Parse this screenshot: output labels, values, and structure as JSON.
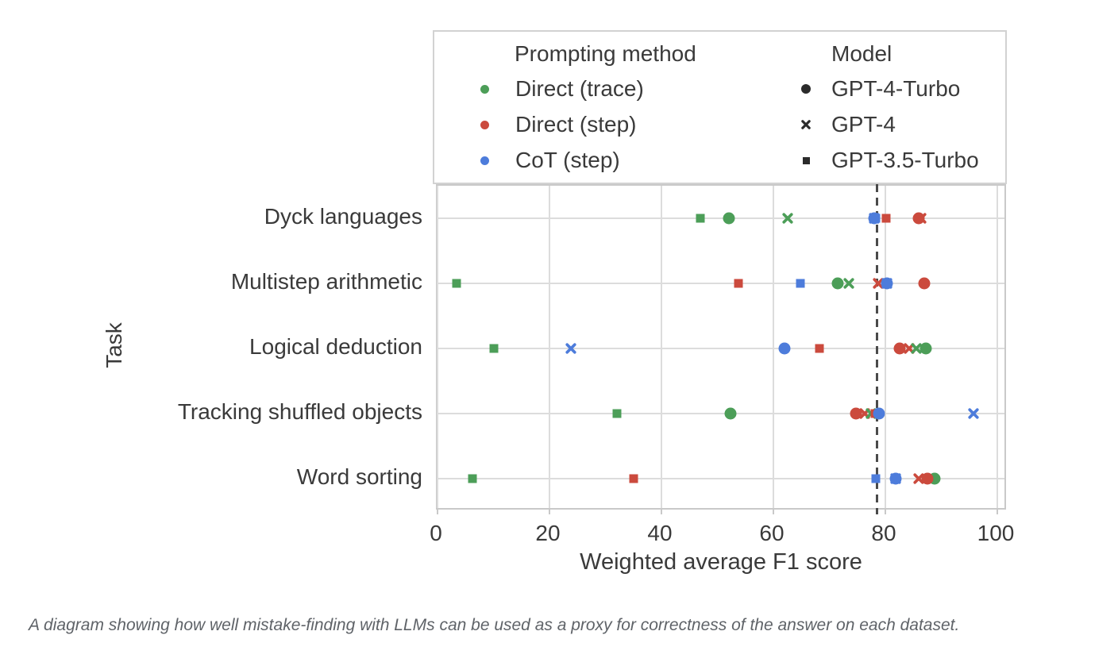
{
  "figure": {
    "caption": "A diagram showing how well mistake-finding with LLMs can be used as a proxy for correctness of the answer on each dataset."
  },
  "chart_data": {
    "type": "scatter",
    "title": "",
    "xlabel": "Weighted average F1 score",
    "ylabel": "Task",
    "xlim": [
      0,
      101.8
    ],
    "xticks": [
      0,
      20,
      40,
      60,
      80,
      100
    ],
    "grid": true,
    "legend_position": "top",
    "categories": [
      "Dyck languages",
      "Multistep arithmetic",
      "Logical deduction",
      "Tracking shuffled objects",
      "Word sorting"
    ],
    "reference_line": {
      "x": 78.5,
      "style": "dashed",
      "color": "#4a4a4a"
    },
    "colors": {
      "Direct (trace)": "#4C9E58",
      "Direct (step)": "#CB4A3D",
      "CoT (step)": "#4D7CDB",
      "model_marker": "#2b2b2b"
    },
    "legend": {
      "prompting": {
        "title": "Prompting method",
        "items": [
          {
            "label": "Direct (trace)",
            "color": "#4C9E58"
          },
          {
            "label": "Direct (step)",
            "color": "#CB4A3D"
          },
          {
            "label": "CoT (step)",
            "color": "#4D7CDB"
          }
        ]
      },
      "model": {
        "title": "Model",
        "items": [
          {
            "label": "GPT-4-Turbo",
            "marker": "circle"
          },
          {
            "label": "GPT-4",
            "marker": "x"
          },
          {
            "label": "GPT-3.5-Turbo",
            "marker": "square"
          }
        ]
      }
    },
    "points": [
      {
        "task": "Dyck languages",
        "method": "Direct (trace)",
        "model": "GPT-3.5-Turbo",
        "marker": "square",
        "x": 47.0
      },
      {
        "task": "Dyck languages",
        "method": "Direct (trace)",
        "model": "GPT-4-Turbo",
        "marker": "circle",
        "x": 52.0
      },
      {
        "task": "Dyck languages",
        "method": "Direct (trace)",
        "model": "GPT-4",
        "marker": "x",
        "x": 62.5
      },
      {
        "task": "Dyck languages",
        "method": "CoT (step)",
        "model": "GPT-4-Turbo",
        "marker": "circle",
        "x": 78.0
      },
      {
        "task": "Dyck languages",
        "method": "CoT (step)",
        "model": "GPT-4",
        "marker": "x",
        "x": 78.0
      },
      {
        "task": "Dyck languages",
        "method": "CoT (step)",
        "model": "GPT-3.5-Turbo",
        "marker": "square",
        "x": 78.3
      },
      {
        "task": "Dyck languages",
        "method": "Direct (step)",
        "model": "GPT-3.5-Turbo",
        "marker": "square",
        "x": 80.2
      },
      {
        "task": "Dyck languages",
        "method": "Direct (step)",
        "model": "GPT-4-Turbo",
        "marker": "circle",
        "x": 86.0
      },
      {
        "task": "Dyck languages",
        "method": "Direct (step)",
        "model": "GPT-4",
        "marker": "x",
        "x": 86.4
      },
      {
        "task": "Multistep arithmetic",
        "method": "Direct (trace)",
        "model": "GPT-3.5-Turbo",
        "marker": "square",
        "x": 3.4
      },
      {
        "task": "Multistep arithmetic",
        "method": "Direct (step)",
        "model": "GPT-3.5-Turbo",
        "marker": "square",
        "x": 53.7
      },
      {
        "task": "Multistep arithmetic",
        "method": "CoT (step)",
        "model": "GPT-3.5-Turbo",
        "marker": "square",
        "x": 64.8
      },
      {
        "task": "Multistep arithmetic",
        "method": "Direct (trace)",
        "model": "GPT-4-Turbo",
        "marker": "circle",
        "x": 71.5
      },
      {
        "task": "Multistep arithmetic",
        "method": "Direct (trace)",
        "model": "GPT-4",
        "marker": "x",
        "x": 73.5
      },
      {
        "task": "Multistep arithmetic",
        "method": "Direct (step)",
        "model": "GPT-4",
        "marker": "x",
        "x": 78.7
      },
      {
        "task": "Multistep arithmetic",
        "method": "CoT (step)",
        "model": "GPT-4-Turbo",
        "marker": "circle",
        "x": 80.3
      },
      {
        "task": "Multistep arithmetic",
        "method": "CoT (step)",
        "model": "GPT-4",
        "marker": "x",
        "x": 80.3
      },
      {
        "task": "Multistep arithmetic",
        "method": "Direct (step)",
        "model": "GPT-4-Turbo",
        "marker": "circle",
        "x": 87.0
      },
      {
        "task": "Logical deduction",
        "method": "Direct (trace)",
        "model": "GPT-3.5-Turbo",
        "marker": "square",
        "x": 10.0
      },
      {
        "task": "Logical deduction",
        "method": "CoT (step)",
        "model": "GPT-4",
        "marker": "x",
        "x": 23.8
      },
      {
        "task": "Logical deduction",
        "method": "CoT (step)",
        "model": "GPT-4-Turbo",
        "marker": "circle",
        "x": 62.0
      },
      {
        "task": "Logical deduction",
        "method": "CoT (step)",
        "model": "GPT-3.5-Turbo",
        "marker": "square",
        "x": 62.0
      },
      {
        "task": "Logical deduction",
        "method": "Direct (step)",
        "model": "GPT-3.5-Turbo",
        "marker": "square",
        "x": 68.2
      },
      {
        "task": "Logical deduction",
        "method": "Direct (step)",
        "model": "GPT-4-Turbo",
        "marker": "circle",
        "x": 82.5
      },
      {
        "task": "Logical deduction",
        "method": "Direct (step)",
        "model": "GPT-4",
        "marker": "x",
        "x": 84.2
      },
      {
        "task": "Logical deduction",
        "method": "Direct (trace)",
        "model": "GPT-4",
        "marker": "x",
        "x": 85.6
      },
      {
        "task": "Logical deduction",
        "method": "Direct (trace)",
        "model": "GPT-4-Turbo",
        "marker": "circle",
        "x": 87.2
      },
      {
        "task": "Tracking shuffled objects",
        "method": "Direct (trace)",
        "model": "GPT-3.5-Turbo",
        "marker": "square",
        "x": 32.0
      },
      {
        "task": "Tracking shuffled objects",
        "method": "Direct (trace)",
        "model": "GPT-4-Turbo",
        "marker": "circle",
        "x": 52.4
      },
      {
        "task": "Tracking shuffled objects",
        "method": "Direct (step)",
        "model": "GPT-4-Turbo",
        "marker": "circle",
        "x": 74.8
      },
      {
        "task": "Tracking shuffled objects",
        "method": "Direct (step)",
        "model": "GPT-4",
        "marker": "x",
        "x": 76.3
      },
      {
        "task": "Tracking shuffled objects",
        "method": "Direct (trace)",
        "model": "GPT-4",
        "marker": "x",
        "x": 77.4
      },
      {
        "task": "Tracking shuffled objects",
        "method": "Direct (step)",
        "model": "GPT-3.5-Turbo",
        "marker": "square",
        "x": 78.2
      },
      {
        "task": "Tracking shuffled objects",
        "method": "CoT (step)",
        "model": "GPT-4-Turbo",
        "marker": "circle",
        "x": 78.9
      },
      {
        "task": "Tracking shuffled objects",
        "method": "CoT (step)",
        "model": "GPT-3.5-Turbo",
        "marker": "square",
        "x": 78.9
      },
      {
        "task": "Tracking shuffled objects",
        "method": "CoT (step)",
        "model": "GPT-4",
        "marker": "x",
        "x": 95.8
      },
      {
        "task": "Word sorting",
        "method": "Direct (trace)",
        "model": "GPT-3.5-Turbo",
        "marker": "square",
        "x": 6.3
      },
      {
        "task": "Word sorting",
        "method": "Direct (step)",
        "model": "GPT-3.5-Turbo",
        "marker": "square",
        "x": 35.0
      },
      {
        "task": "Word sorting",
        "method": "CoT (step)",
        "model": "GPT-3.5-Turbo",
        "marker": "square",
        "x": 78.3
      },
      {
        "task": "Word sorting",
        "method": "CoT (step)",
        "model": "GPT-4-Turbo",
        "marker": "circle",
        "x": 81.9
      },
      {
        "task": "Word sorting",
        "method": "CoT (step)",
        "model": "GPT-4",
        "marker": "x",
        "x": 81.9
      },
      {
        "task": "Word sorting",
        "method": "Direct (step)",
        "model": "GPT-4",
        "marker": "x",
        "x": 85.9
      },
      {
        "task": "Word sorting",
        "method": "Direct (trace)",
        "model": "GPT-4",
        "marker": "x",
        "x": 88.2
      },
      {
        "task": "Word sorting",
        "method": "Direct (trace)",
        "model": "GPT-4-Turbo",
        "marker": "circle",
        "x": 88.8
      },
      {
        "task": "Word sorting",
        "method": "Direct (step)",
        "model": "GPT-4-Turbo",
        "marker": "circle",
        "x": 87.5
      }
    ]
  }
}
